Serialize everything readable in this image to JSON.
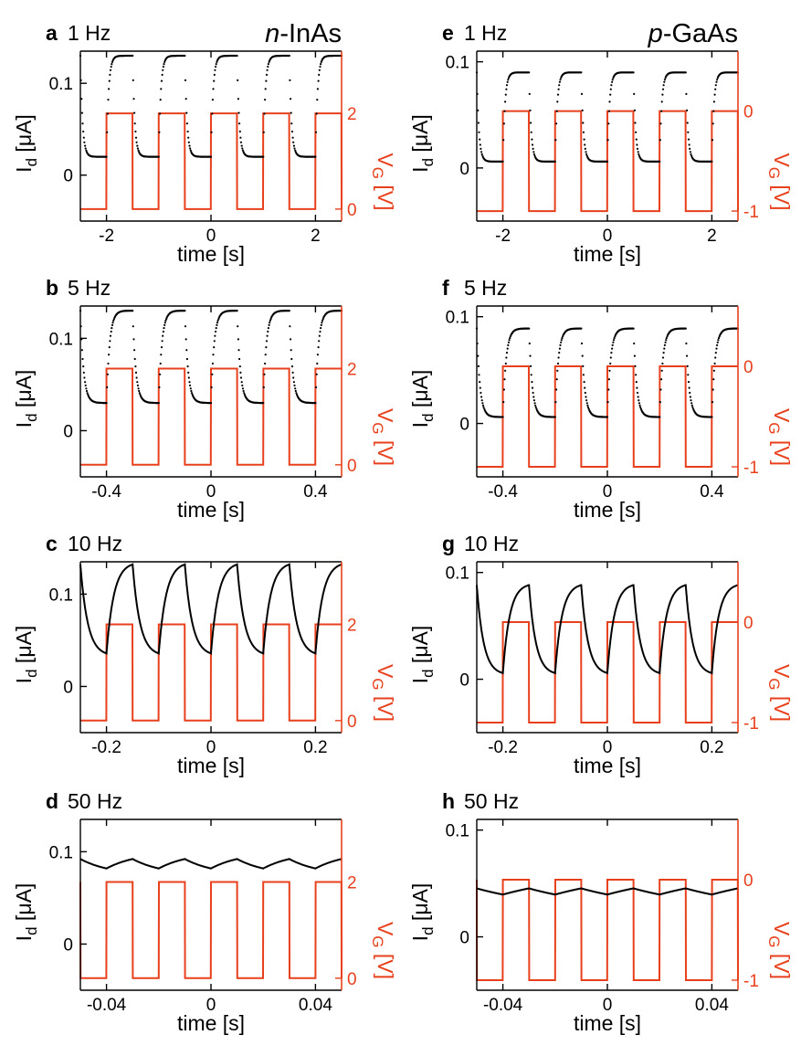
{
  "chart_data": [
    {
      "id": "a",
      "type": "line",
      "panel_label": "a",
      "freq_label": "1 Hz",
      "material": {
        "italic": "n",
        "rest": "-InAs"
      },
      "xlabel": "time [s]",
      "ylabel": "I",
      "ylabel_sub": "d",
      "ylabel_unit": " [μA]",
      "y2label": "V",
      "y2label_sub": "G",
      "y2label_unit": " [V]",
      "xlim": [
        -2.5,
        2.5
      ],
      "ylim": [
        -0.05,
        0.135
      ],
      "y2lim": [
        -0.25,
        3.3
      ],
      "xticks": [
        -2,
        0,
        2
      ],
      "xtick_labels": [
        "-2",
        "0",
        "2"
      ],
      "yticks": [
        0,
        0.1
      ],
      "ytick_labels": [
        "0",
        "0.1"
      ],
      "y2ticks": [
        0,
        2
      ],
      "y2tick_labels": [
        "0",
        "2"
      ],
      "frequency_hz": 1,
      "gate_low": 0,
      "gate_high": 2,
      "current_low": 0.02,
      "current_high": 0.13,
      "tau_s": 0.04,
      "curve_style": "dotted",
      "series": [
        {
          "values_desc": "drain current, square response"
        },
        {
          "values_desc": "gate voltage square wave"
        }
      ]
    },
    {
      "id": "b",
      "type": "line",
      "panel_label": "b",
      "freq_label": "5 Hz",
      "xlabel": "time [s]",
      "ylabel": "I",
      "ylabel_sub": "d",
      "ylabel_unit": " [μA]",
      "y2label": "V",
      "y2label_sub": "G",
      "y2label_unit": " [V]",
      "xlim": [
        -0.5,
        0.5
      ],
      "ylim": [
        -0.05,
        0.135
      ],
      "y2lim": [
        -0.25,
        3.3
      ],
      "xticks": [
        -0.4,
        0,
        0.4
      ],
      "xtick_labels": [
        "-0.4",
        "0",
        "0.4"
      ],
      "yticks": [
        0,
        0.1
      ],
      "ytick_labels": [
        "0",
        "0.1"
      ],
      "y2ticks": [
        0,
        2
      ],
      "y2tick_labels": [
        "0",
        "2"
      ],
      "frequency_hz": 5,
      "gate_low": 0,
      "gate_high": 2,
      "current_low": 0.03,
      "current_high": 0.13,
      "tau_s": 0.012,
      "curve_style": "dotted"
    },
    {
      "id": "c",
      "type": "line",
      "panel_label": "c",
      "freq_label": "10 Hz",
      "xlabel": "time [s]",
      "ylabel": "I",
      "ylabel_sub": "d",
      "ylabel_unit": " [μA]",
      "y2label": "V",
      "y2label_sub": "G",
      "y2label_unit": " [V]",
      "xlim": [
        -0.25,
        0.25
      ],
      "ylim": [
        -0.05,
        0.135
      ],
      "y2lim": [
        -0.25,
        3.3
      ],
      "xticks": [
        -0.2,
        0,
        0.2
      ],
      "xtick_labels": [
        "-0.2",
        "0",
        "0.2"
      ],
      "yticks": [
        0,
        0.1
      ],
      "ytick_labels": [
        "0",
        "0.1"
      ],
      "y2ticks": [
        0,
        2
      ],
      "y2tick_labels": [
        "0",
        "2"
      ],
      "frequency_hz": 10,
      "gate_low": 0,
      "gate_high": 2,
      "current_low": 0.033,
      "current_high": 0.135,
      "tau_s": 0.014,
      "curve_style": "solid"
    },
    {
      "id": "d",
      "type": "line",
      "panel_label": "d",
      "freq_label": "50 Hz",
      "xlabel": "time [s]",
      "ylabel": "I",
      "ylabel_sub": "d",
      "ylabel_unit": " [μA]",
      "y2label": "V",
      "y2label_sub": "G",
      "y2label_unit": " [V]",
      "xlim": [
        -0.05,
        0.05
      ],
      "ylim": [
        -0.05,
        0.135
      ],
      "y2lim": [
        -0.25,
        3.3
      ],
      "xticks": [
        -0.04,
        0,
        0.04
      ],
      "xtick_labels": [
        "-0.04",
        "0",
        "0.04"
      ],
      "yticks": [
        0,
        0.1
      ],
      "ytick_labels": [
        "0",
        "0.1"
      ],
      "y2ticks": [
        0,
        2
      ],
      "y2tick_labels": [
        "0",
        "2"
      ],
      "frequency_hz": 50,
      "gate_low": 0,
      "gate_high": 2,
      "current_low": 0.074,
      "current_high": 0.1,
      "tau_s": 0.012,
      "curve_style": "solid"
    },
    {
      "id": "e",
      "type": "line",
      "panel_label": "e",
      "freq_label": "1 Hz",
      "material": {
        "italic": "p",
        "rest": "-GaAs"
      },
      "xlabel": "time [s]",
      "ylabel": "I",
      "ylabel_sub": "d",
      "ylabel_unit": " [μA]",
      "y2label": "V",
      "y2label_sub": "G",
      "y2label_unit": " [V]",
      "xlim": [
        -2.5,
        2.5
      ],
      "ylim": [
        -0.05,
        0.11
      ],
      "y2lim": [
        -1.1,
        0.6
      ],
      "xticks": [
        -2,
        0,
        2
      ],
      "xtick_labels": [
        "-2",
        "0",
        "2"
      ],
      "yticks": [
        0,
        0.1
      ],
      "ytick_labels": [
        "0",
        "0.1"
      ],
      "y2ticks": [
        -1,
        0
      ],
      "y2tick_labels": [
        "-1",
        "0"
      ],
      "frequency_hz": 1,
      "gate_low": -1,
      "gate_high": 0,
      "current_low": 0.006,
      "current_high": 0.09,
      "tau_s": 0.04,
      "curve_style": "dotted"
    },
    {
      "id": "f",
      "type": "line",
      "panel_label": "f",
      "freq_label": "5 Hz",
      "xlabel": "time [s]",
      "ylabel": "I",
      "ylabel_sub": "d",
      "ylabel_unit": " [μA]",
      "y2label": "V",
      "y2label_sub": "G",
      "y2label_unit": " [V]",
      "xlim": [
        -0.5,
        0.5
      ],
      "ylim": [
        -0.05,
        0.11
      ],
      "y2lim": [
        -1.1,
        0.6
      ],
      "xticks": [
        -0.4,
        0,
        0.4
      ],
      "xtick_labels": [
        "-0.4",
        "0",
        "0.4"
      ],
      "yticks": [
        0,
        0.1
      ],
      "ytick_labels": [
        "0",
        "0.1"
      ],
      "y2ticks": [
        -1,
        0
      ],
      "y2tick_labels": [
        "-1",
        "0"
      ],
      "frequency_hz": 5,
      "gate_low": -1,
      "gate_high": 0,
      "current_low": 0.006,
      "current_high": 0.089,
      "tau_s": 0.012,
      "curve_style": "dotted"
    },
    {
      "id": "g",
      "type": "line",
      "panel_label": "g",
      "freq_label": "10 Hz",
      "xlabel": "time [s]",
      "ylabel": "I",
      "ylabel_sub": "d",
      "ylabel_unit": " [μA]",
      "y2label": "V",
      "y2label_sub": "G",
      "y2label_unit": " [V]",
      "xlim": [
        -0.25,
        0.25
      ],
      "ylim": [
        -0.05,
        0.11
      ],
      "y2lim": [
        -1.1,
        0.6
      ],
      "xticks": [
        -0.2,
        0,
        0.2
      ],
      "xtick_labels": [
        "-0.2",
        "0",
        "0.2"
      ],
      "yticks": [
        0,
        0.1
      ],
      "ytick_labels": [
        "0",
        "0.1"
      ],
      "y2ticks": [
        -1,
        0
      ],
      "y2tick_labels": [
        "-1",
        "0"
      ],
      "frequency_hz": 10,
      "gate_low": -1,
      "gate_high": 0,
      "current_low": 0.004,
      "current_high": 0.09,
      "tau_s": 0.013,
      "curve_style": "solid"
    },
    {
      "id": "h",
      "type": "line",
      "panel_label": "h",
      "freq_label": "50 Hz",
      "xlabel": "time [s]",
      "ylabel": "I",
      "ylabel_sub": "d",
      "ylabel_unit": " [μA]",
      "y2label": "V",
      "y2label_sub": "G",
      "y2label_unit": " [V]",
      "xlim": [
        -0.05,
        0.05
      ],
      "ylim": [
        -0.05,
        0.11
      ],
      "y2lim": [
        -1.1,
        0.6
      ],
      "xticks": [
        -0.04,
        0,
        0.04
      ],
      "xtick_labels": [
        "-0.04",
        "0",
        "0.04"
      ],
      "yticks": [
        0,
        0.1
      ],
      "ytick_labels": [
        "0",
        "0.1"
      ],
      "y2ticks": [
        -1,
        0
      ],
      "y2tick_labels": [
        "-1",
        "0"
      ],
      "frequency_hz": 50,
      "gate_low": -1,
      "gate_high": 0,
      "current_low": 0.025,
      "current_high": 0.06,
      "tau_s": 0.03,
      "curve_style": "solid"
    }
  ],
  "colors": {
    "current": "#000000",
    "gate": "#e8401c"
  }
}
